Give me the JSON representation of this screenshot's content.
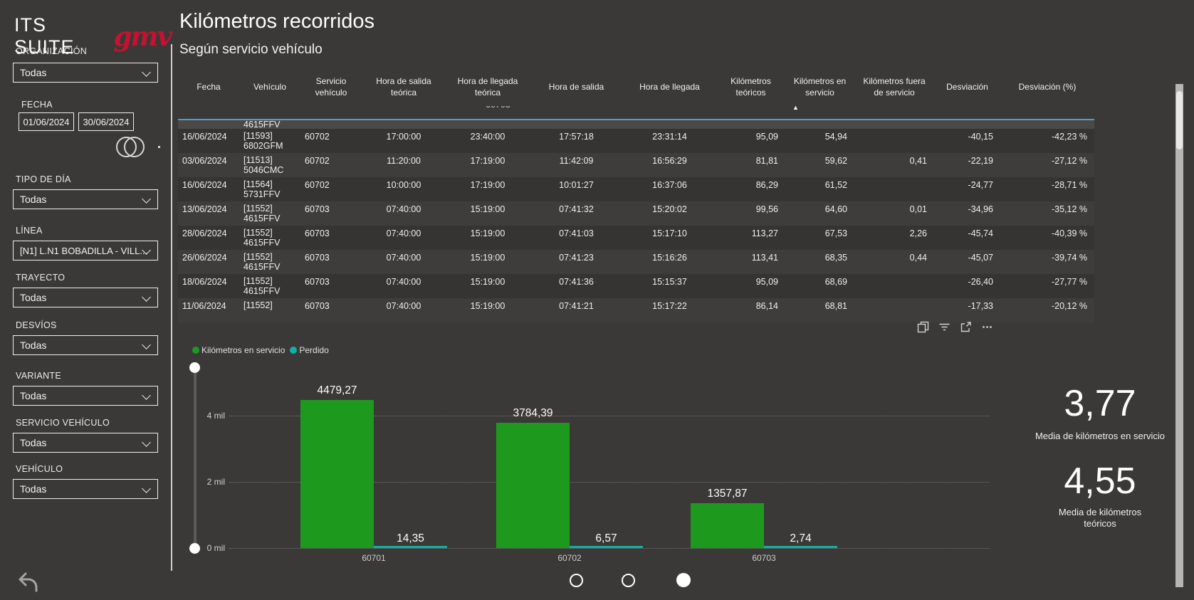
{
  "app": {
    "suite_title": "ITS SUITE",
    "logo_text": "gmv"
  },
  "sidebar": {
    "organizacion": {
      "label": "ORGANIZACIÓN",
      "value": "Todas"
    },
    "fecha": {
      "label": "FECHA",
      "from": "01/06/2024",
      "to": "30/06/2024"
    },
    "tipo_dia": {
      "label": "TIPO DE DÍA",
      "value": "Todas"
    },
    "linea": {
      "label": "LÍNEA",
      "value": "[N1] L.N1 BOBADILLA - VILL..."
    },
    "trayecto": {
      "label": "TRAYECTO",
      "value": "Todas"
    },
    "desvios": {
      "label": "DESVÍOS",
      "value": "Todas"
    },
    "variante": {
      "label": "VARIANTE",
      "value": "Todas"
    },
    "servicio_vehiculo": {
      "label": "SERVICIO VEHÍCULO",
      "value": "Todas"
    },
    "vehiculo": {
      "label": "VEHÍCULO",
      "value": "Todas"
    }
  },
  "main": {
    "title": "Kilómetros recorridos",
    "subtitle": "Según servicio vehículo"
  },
  "table": {
    "columns": [
      "Fecha",
      "Vehículo",
      "Servicio vehículo",
      "Hora de salida teórica",
      "Hora de llegada teórica",
      "Hora de salida",
      "Hora de llegada",
      "Kilómetros teóricos",
      "Kilómetros en servicio",
      "Kilómetros fuera de servicio",
      "Desviación",
      "Desviación (%)"
    ],
    "sorted_by": "Kilómetros en servicio",
    "clipped_row": {
      "servicio": "60703"
    },
    "partial_row": {
      "vehiculo": "4615FFV"
    },
    "rows": [
      {
        "fecha": "16/06/2024",
        "vehiculo": "[11593]\n6802GFM",
        "servicio": "60702",
        "hst": "17:00:00",
        "hlt": "23:40:00",
        "hs": "17:57:18",
        "hl": "23:31:14",
        "kmt": "95,09",
        "kms": "54,94",
        "kmf": "",
        "desv": "-40,15",
        "desv_pct": "-42,23 %"
      },
      {
        "fecha": "03/06/2024",
        "vehiculo": "[11513]\n5046CMC",
        "servicio": "60702",
        "hst": "11:20:00",
        "hlt": "17:19:00",
        "hs": "11:42:09",
        "hl": "16:56:29",
        "kmt": "81,81",
        "kms": "59,62",
        "kmf": "0,41",
        "desv": "-22,19",
        "desv_pct": "-27,12 %"
      },
      {
        "fecha": "16/06/2024",
        "vehiculo": "[11564]\n5731FFV",
        "servicio": "60702",
        "hst": "10:00:00",
        "hlt": "17:19:00",
        "hs": "10:01:27",
        "hl": "16:37:06",
        "kmt": "86,29",
        "kms": "61,52",
        "kmf": "",
        "desv": "-24,77",
        "desv_pct": "-28,71 %"
      },
      {
        "fecha": "13/06/2024",
        "vehiculo": "[11552]\n4615FFV",
        "servicio": "60703",
        "hst": "07:40:00",
        "hlt": "15:19:00",
        "hs": "07:41:32",
        "hl": "15:20:02",
        "kmt": "99,56",
        "kms": "64,60",
        "kmf": "0,01",
        "desv": "-34,96",
        "desv_pct": "-35,12 %"
      },
      {
        "fecha": "28/06/2024",
        "vehiculo": "[11552]\n4615FFV",
        "servicio": "60703",
        "hst": "07:40:00",
        "hlt": "15:19:00",
        "hs": "07:41:03",
        "hl": "15:17:10",
        "kmt": "113,27",
        "kms": "67,53",
        "kmf": "2,26",
        "desv": "-45,74",
        "desv_pct": "-40,39 %"
      },
      {
        "fecha": "26/06/2024",
        "vehiculo": "[11552]\n4615FFV",
        "servicio": "60703",
        "hst": "07:40:00",
        "hlt": "15:19:00",
        "hs": "07:41:23",
        "hl": "15:16:26",
        "kmt": "113,41",
        "kms": "68,35",
        "kmf": "0,44",
        "desv": "-45,07",
        "desv_pct": "-39,74 %"
      },
      {
        "fecha": "18/06/2024",
        "vehiculo": "[11552]\n4615FFV",
        "servicio": "60703",
        "hst": "07:40:00",
        "hlt": "15:19:00",
        "hs": "07:41:36",
        "hl": "15:15:37",
        "kmt": "95,09",
        "kms": "68,69",
        "kmf": "",
        "desv": "-26,40",
        "desv_pct": "-27,77 %"
      },
      {
        "fecha": "11/06/2024",
        "vehiculo": "[11552]",
        "servicio": "60703",
        "hst": "07:40:00",
        "hlt": "15:19:00",
        "hs": "07:41:21",
        "hl": "15:17:22",
        "kmt": "86,14",
        "kms": "68,81",
        "kmf": "",
        "desv": "-17,33",
        "desv_pct": "-20,12 %"
      }
    ]
  },
  "visual_toolbar": {
    "icons": [
      "copy",
      "filter",
      "focus-mode",
      "more-options"
    ]
  },
  "kpis": [
    {
      "value": "3,77",
      "label": "Media de kilómetros en servicio"
    },
    {
      "value": "4,55",
      "label": "Media de kilómetros teóricos"
    }
  ],
  "pagination": {
    "dots": 3,
    "active_index": 2
  },
  "chart_data": {
    "type": "bar",
    "categories": [
      "60701",
      "60702",
      "60703"
    ],
    "series": [
      {
        "name": "Kilómetros en servicio",
        "color": "#1d9a1d",
        "values": [
          4479.27,
          3784.39,
          1357.87
        ],
        "labels": [
          "4479,27",
          "3784,39",
          "1357,87"
        ]
      },
      {
        "name": "Perdido",
        "color": "#0fb3a3",
        "values": [
          14.35,
          6.57,
          2.74
        ],
        "labels": [
          "14,35",
          "6,57",
          "2,74"
        ]
      }
    ],
    "y_tick_labels": [
      "4 mil",
      "2 mil",
      "0 mil"
    ],
    "ylim": [
      0,
      5000
    ],
    "grid": "dotted-horizontal",
    "legend_position": "top-left",
    "title": "",
    "xlabel": "",
    "ylabel": ""
  },
  "colors": {
    "background": "#3a3938",
    "accent_blue": "#4e9ad2",
    "bar_green": "#1d9a1d",
    "bar_teal": "#0fb3a3",
    "logo_red": "#c51230"
  }
}
